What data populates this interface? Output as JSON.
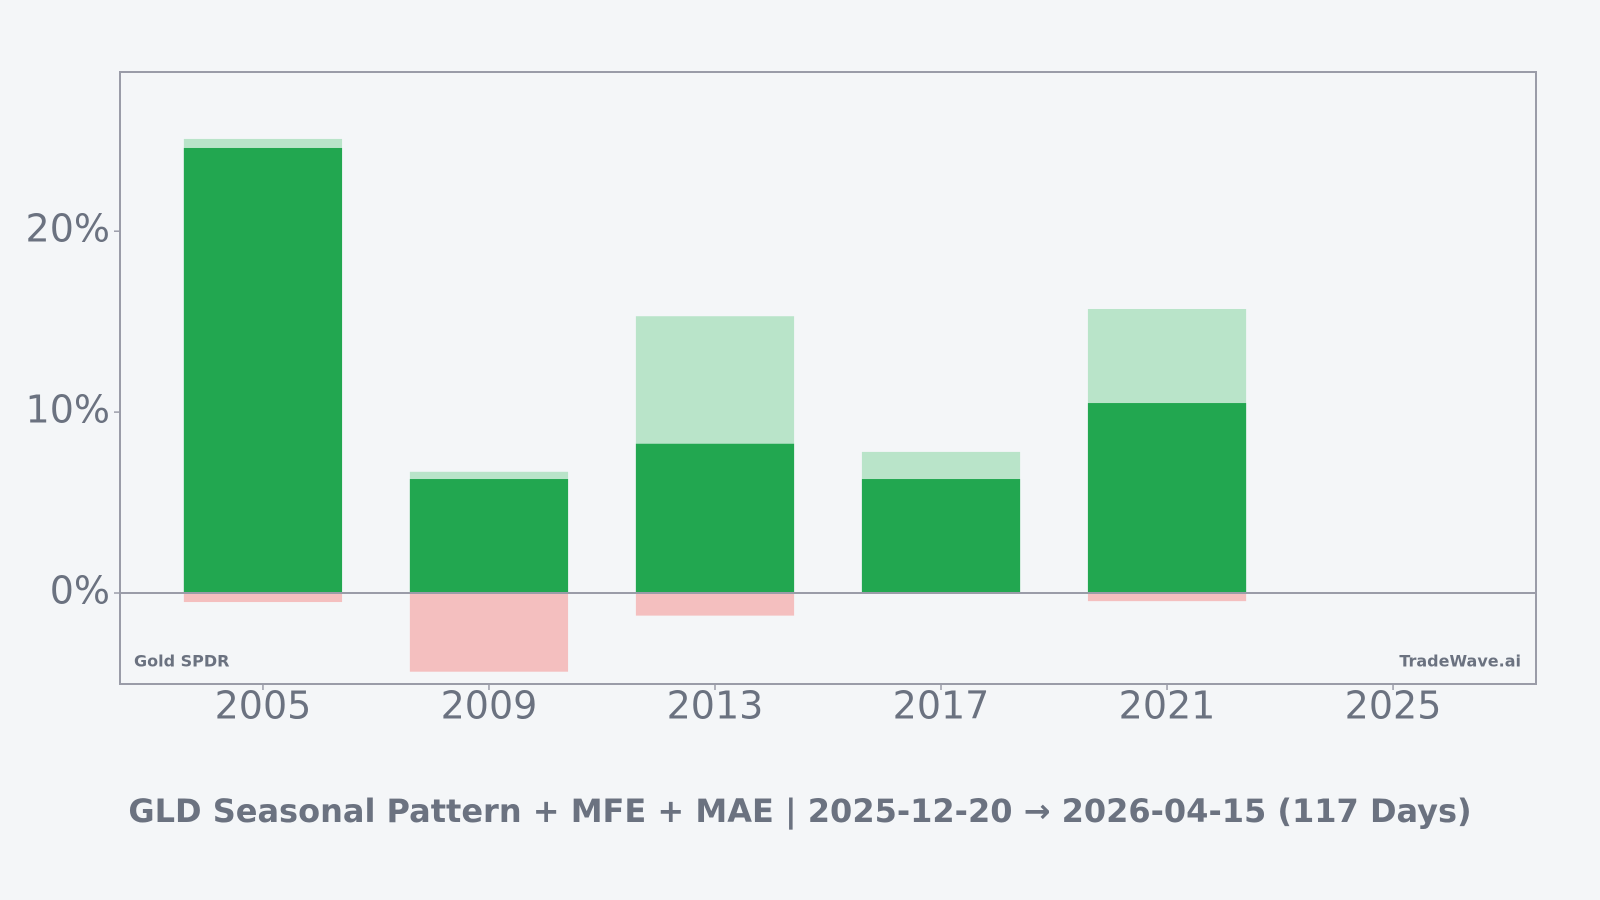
{
  "chart_data": {
    "type": "bar",
    "title": "GLD Seasonal Pattern + MFE + MAE | 2025-12-20 → 2026-04-15 (117 Days)",
    "annotations": [
      "Gold SPDR",
      "TradeWave.ai"
    ],
    "x": [
      2005,
      2009,
      2013,
      2017,
      2021
    ],
    "series": [
      {
        "color": "#b9e4c9",
        "values": [
          25.1,
          6.7,
          15.3,
          7.8,
          15.7
        ]
      },
      {
        "color": "#22a750",
        "values": [
          24.6,
          6.3,
          8.25,
          6.3,
          10.5
        ]
      },
      {
        "color": "#f4bfbf",
        "values": [
          -0.5,
          -4.35,
          -1.25,
          0,
          -0.45
        ]
      }
    ],
    "xlim": [
      2002.47,
      2027.53
    ],
    "xticks": [
      2005,
      2009,
      2013,
      2017,
      2021,
      2025
    ],
    "ylim": [
      -5.03,
      28.8
    ],
    "yticks": [
      {
        "value": 0,
        "label": "0%"
      },
      {
        "value": 10,
        "label": "10%"
      },
      {
        "value": 20,
        "label": "20%"
      }
    ],
    "grid": false
  }
}
